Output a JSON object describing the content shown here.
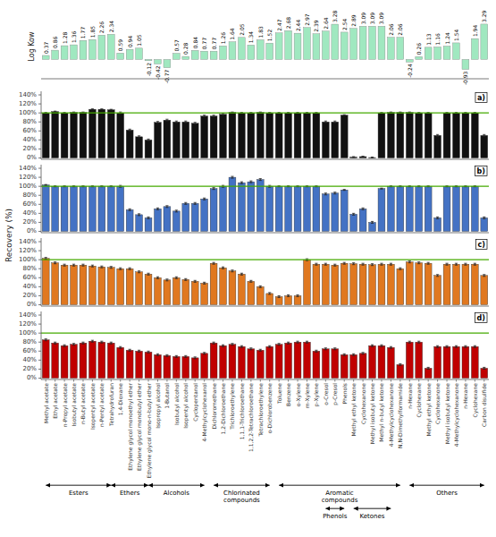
{
  "chart_data": [
    {
      "type": "bar",
      "ylabel": "Log Kow",
      "values": [
        0.37,
        0.86,
        1.28,
        1.36,
        1.77,
        1.85,
        2.26,
        2.34,
        0.59,
        0.94,
        1.05,
        -0.12,
        -0.42,
        -0.77,
        0.57,
        0.28,
        0.84,
        0.77,
        0.77,
        1.26,
        1.64,
        2.05,
        1.34,
        1.83,
        1.52,
        2.47,
        2.68,
        2.44,
        2.97,
        2.39,
        2.64,
        3.28,
        2.54,
        2.89,
        3.09,
        3.09,
        3.09,
        2.06,
        2.06,
        -0.24,
        0.26,
        1.13,
        1.16,
        1.24,
        1.54,
        -0.93,
        1.94,
        3.29
      ],
      "color": "#a0e8c0",
      "ylim": [
        -1.8,
        4.2
      ],
      "yticks": [],
      "tick_labels": false,
      "data_labels": true,
      "grid": false
    },
    {
      "type": "bar",
      "ylabel": "Recovery (%)",
      "annotations": [
        "a)"
      ],
      "values": [
        100,
        103,
        100,
        101,
        101,
        108,
        108,
        107,
        100,
        62,
        47,
        40,
        79,
        84,
        80,
        80,
        77,
        93,
        93,
        97,
        101,
        100,
        100,
        101,
        100,
        100,
        100,
        100,
        100,
        100,
        80,
        80,
        95,
        2,
        3,
        1,
        100,
        101,
        101,
        101,
        100,
        100,
        50,
        100,
        100,
        100,
        100,
        50
      ],
      "errors": [
        1,
        1,
        1,
        1,
        1,
        1,
        1,
        1,
        2,
        2,
        2,
        2,
        2,
        2,
        2,
        2,
        2,
        2,
        2,
        2,
        1,
        1,
        1,
        1,
        1,
        1,
        1,
        1,
        1,
        1,
        2,
        2,
        1,
        1,
        1,
        1,
        1,
        1,
        1,
        1,
        1,
        1,
        2,
        1,
        1,
        1,
        1,
        2
      ],
      "color": "#111111",
      "hline": {
        "value": 100,
        "color": "#44aa00"
      },
      "ylim": [
        -3,
        148
      ],
      "yticks": [
        {
          "value": 0,
          "label": "0%"
        },
        {
          "value": 20,
          "label": "20%"
        },
        {
          "value": 40,
          "label": "40%"
        },
        {
          "value": 60,
          "label": "60%"
        },
        {
          "value": 80,
          "label": "80%"
        },
        {
          "value": 100,
          "label": "100%"
        },
        {
          "value": 120,
          "label": "120%"
        },
        {
          "value": 140,
          "label": "140%"
        }
      ],
      "tick_labels": "y",
      "grid": false
    },
    {
      "type": "bar",
      "annotations": [
        "b)"
      ],
      "values": [
        103,
        100,
        100,
        100,
        100,
        100,
        100,
        100,
        100,
        48,
        37,
        30,
        50,
        55,
        45,
        62,
        62,
        72,
        95,
        100,
        120,
        108,
        110,
        115,
        100,
        100,
        100,
        100,
        100,
        100,
        83,
        85,
        92,
        38,
        50,
        20,
        95,
        100,
        100,
        100,
        100,
        100,
        30,
        100,
        100,
        100,
        100,
        30
      ],
      "errors": [
        1,
        1,
        1,
        1,
        1,
        1,
        1,
        1,
        2,
        2,
        2,
        2,
        2,
        2,
        2,
        2,
        2,
        2,
        2,
        2,
        2,
        2,
        2,
        2,
        2,
        1,
        1,
        1,
        1,
        1,
        2,
        2,
        1,
        2,
        2,
        2,
        1,
        1,
        1,
        1,
        1,
        1,
        2,
        1,
        1,
        1,
        1,
        2
      ],
      "color": "#4472c4",
      "hline": {
        "value": 100,
        "color": "#44aa00"
      },
      "ylim": [
        -3,
        148
      ],
      "yticks": [
        {
          "value": 0,
          "label": "0%"
        },
        {
          "value": 20,
          "label": "20%"
        },
        {
          "value": 40,
          "label": "40%"
        },
        {
          "value": 60,
          "label": "60%"
        },
        {
          "value": 80,
          "label": "80%"
        },
        {
          "value": 100,
          "label": "100%"
        },
        {
          "value": 120,
          "label": "120%"
        },
        {
          "value": 140,
          "label": "140%"
        }
      ],
      "tick_labels": "y",
      "grid": false
    },
    {
      "type": "bar",
      "annotations": [
        "c)"
      ],
      "values": [
        103,
        93,
        88,
        88,
        88,
        86,
        84,
        83,
        80,
        80,
        73,
        68,
        60,
        55,
        60,
        56,
        52,
        48,
        92,
        82,
        75,
        68,
        52,
        40,
        25,
        18,
        20,
        20,
        100,
        90,
        90,
        88,
        92,
        91,
        90,
        89,
        90,
        90,
        80,
        95,
        93,
        92,
        65,
        90,
        90,
        90,
        90,
        65
      ],
      "errors": [
        2,
        2,
        2,
        2,
        2,
        2,
        2,
        2,
        2,
        2,
        2,
        2,
        2,
        2,
        2,
        2,
        2,
        2,
        2,
        2,
        2,
        2,
        2,
        2,
        2,
        2,
        2,
        2,
        2,
        2,
        2,
        2,
        2,
        2,
        2,
        2,
        2,
        2,
        2,
        2,
        2,
        2,
        2,
        2,
        2,
        2,
        2,
        2
      ],
      "color": "#e07820",
      "hline": {
        "value": 100,
        "color": "#44aa00"
      },
      "ylim": [
        -3,
        148
      ],
      "yticks": [
        {
          "value": 0,
          "label": "0%"
        },
        {
          "value": 20,
          "label": "20%"
        },
        {
          "value": 40,
          "label": "40%"
        },
        {
          "value": 60,
          "label": "60%"
        },
        {
          "value": 80,
          "label": "80%"
        },
        {
          "value": 100,
          "label": "100%"
        },
        {
          "value": 120,
          "label": "120%"
        },
        {
          "value": 140,
          "label": "140%"
        }
      ],
      "tick_labels": "y",
      "grid": false
    },
    {
      "type": "bar",
      "annotations": [
        "d)"
      ],
      "categories": [
        "Methyl acetate",
        "Ethyl acetate",
        "n-Propyl acetate",
        "Isobutyl acetate",
        "n-Butyl acetate",
        "Isopentyl acetate",
        "n-Pentyl acetate",
        "Tetrahydrofuran",
        "1,4-Dioxane",
        "Ethylene glycol monoethyl ether",
        "Ethylene glycol monobutyl ether",
        "Ethylene glycol mono-n-butyl ether",
        "Isopropyl alcohol",
        "1-Butanol",
        "Isobutyl alcohol",
        "Isopentyl alcohol",
        "Cyclopentanol",
        "4-Methylcyclohexanol",
        "Dichloromethane",
        "1,2-Dichloroethane",
        "Trichloroethylene",
        "1,1,1-Trichloroethane",
        "1,1,2,2-Tetrachloroethane",
        "Tetrachloroethylene",
        "o-Dichlorobenzene",
        "Toluene",
        "Benzene",
        "o-Xylene",
        "m-Xylene",
        "p-Xylene",
        "o-Cresol",
        "p-Cresol",
        "Phenols",
        "Methyl ethyl ketone",
        "Cyclohexanone",
        "Methyl isobutyl ketone",
        "Methyl n-butyl ketone",
        "4-Methylcyclohexanone",
        "N,N-Dimethylformamide",
        "n-Hexane",
        "Cyclohexane",
        "Methyl ethyl ketone",
        "Cyclohexanone",
        "Methyl isobutyl ketone",
        "4-Methylcyclohexanone",
        "n-Hexane",
        "Cyclohexane",
        "Carbon disulfide"
      ],
      "values": [
        85,
        78,
        72,
        75,
        78,
        82,
        80,
        78,
        68,
        62,
        60,
        58,
        52,
        50,
        48,
        48,
        45,
        55,
        78,
        72,
        75,
        70,
        65,
        62,
        70,
        75,
        78,
        80,
        80,
        60,
        65,
        65,
        52,
        52,
        55,
        72,
        72,
        68,
        30,
        80,
        80,
        22,
        70,
        70,
        70,
        70,
        70,
        22
      ],
      "errors": [
        2,
        2,
        2,
        2,
        2,
        2,
        2,
        2,
        2,
        2,
        2,
        2,
        2,
        2,
        2,
        2,
        2,
        2,
        2,
        2,
        2,
        2,
        2,
        2,
        2,
        2,
        2,
        2,
        2,
        2,
        2,
        2,
        2,
        2,
        2,
        2,
        2,
        2,
        2,
        2,
        2,
        2,
        2,
        2,
        2,
        2,
        2,
        2
      ],
      "color": "#c00000",
      "hline": {
        "value": 100,
        "color": "#44aa00"
      },
      "ylim": [
        -3,
        148
      ],
      "yticks": [
        {
          "value": 0,
          "label": "0%"
        },
        {
          "value": 20,
          "label": "20%"
        },
        {
          "value": 40,
          "label": "40%"
        },
        {
          "value": 60,
          "label": "60%"
        },
        {
          "value": 80,
          "label": "80%"
        },
        {
          "value": 100,
          "label": "100%"
        },
        {
          "value": 120,
          "label": "120%"
        },
        {
          "value": 140,
          "label": "140%"
        }
      ],
      "grid": false,
      "groups": [
        {
          "label": "Esters",
          "first": 0,
          "last": 7
        },
        {
          "label": "Ethers",
          "first": 7,
          "last": 11
        },
        {
          "label": "Alcohols",
          "first": 11,
          "last": 17
        },
        {
          "label": "Chlorinated\ncompounds",
          "first": 18,
          "last": 24
        },
        {
          "label": "Aromatic\ncompounds",
          "first": 25,
          "last": 38
        },
        {
          "label": "Phenols",
          "first": 30,
          "last": 32
        },
        {
          "label": "Ketones",
          "first": 33,
          "last": 37
        },
        {
          "label": "Others",
          "first": 39,
          "last": 47
        }
      ]
    }
  ]
}
